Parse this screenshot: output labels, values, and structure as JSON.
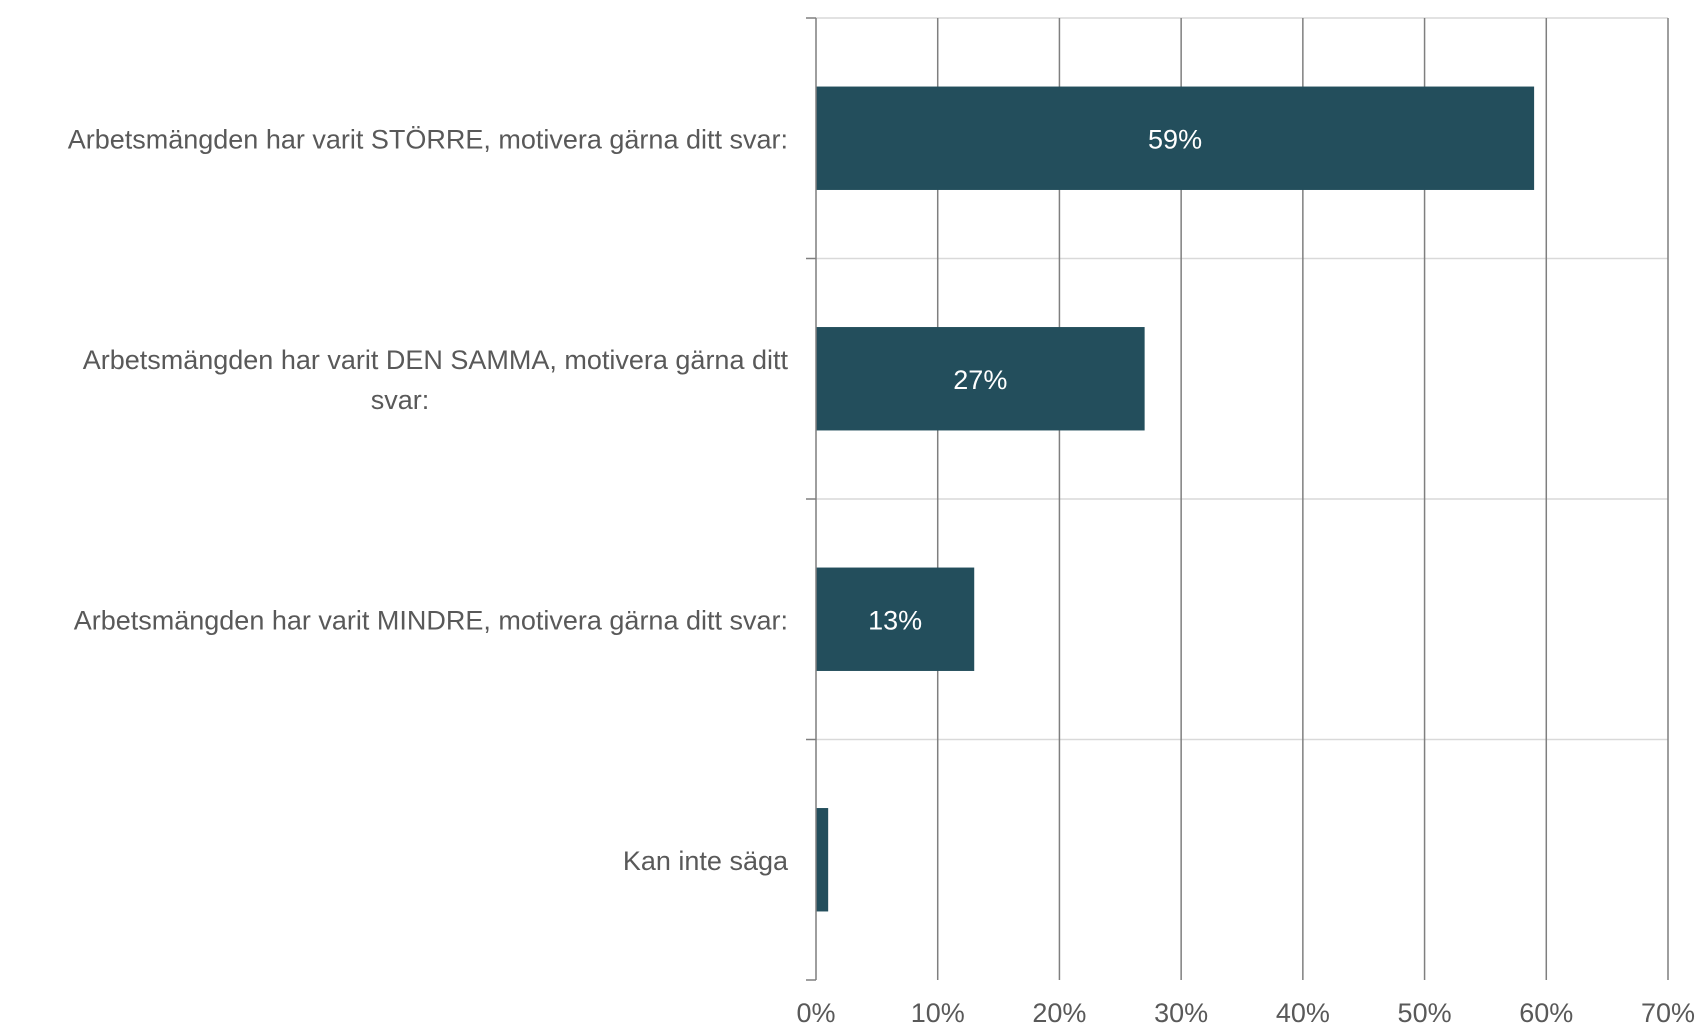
{
  "chart_data": {
    "type": "bar",
    "orientation": "horizontal",
    "categories": [
      [
        "Arbetsmängden har varit STÖRRE, motivera gärna ditt svar:"
      ],
      [
        "Arbetsmängden har varit DEN SAMMA, motivera gärna ditt",
        "svar:"
      ],
      [
        "Arbetsmängden har varit MINDRE, motivera gärna ditt svar:"
      ],
      [
        "Kan inte säga"
      ]
    ],
    "values": [
      59,
      27,
      13,
      1
    ],
    "data_labels": [
      "59%",
      "27%",
      "13%",
      ""
    ],
    "xlim": [
      0,
      70
    ],
    "x_ticks": [
      0,
      10,
      20,
      30,
      40,
      50,
      60,
      70
    ],
    "x_tick_labels": [
      "0%",
      "10%",
      "20%",
      "30%",
      "40%",
      "50%",
      "60%",
      "70%"
    ],
    "title": "",
    "xlabel": "",
    "ylabel": "",
    "bar_color": "#234e5c",
    "grid": true,
    "legend": "none"
  }
}
